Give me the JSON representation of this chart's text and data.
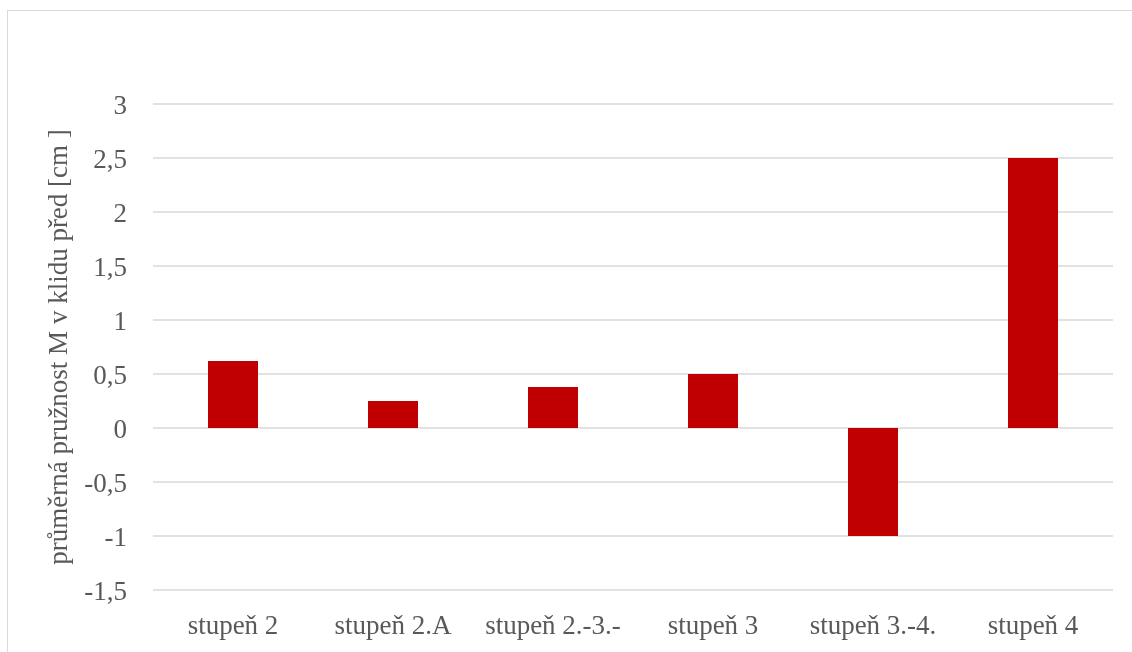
{
  "chart_data": {
    "type": "bar",
    "ylabel": "průměrná pružnost M v klidu před [cm ]",
    "categories": [
      "stupeň 2",
      "stupeň 2.A",
      "stupeň 2.-3.-",
      "stupeň 3",
      "stupeň 3.-4.",
      "stupeň 4"
    ],
    "values": [
      0.62,
      0.25,
      0.38,
      0.5,
      -1,
      2.5
    ],
    "color": "#c00000",
    "ylim": [
      -1.5,
      3
    ],
    "yticks": [
      {
        "value": -1.5,
        "label": "-1,5"
      },
      -1,
      {
        "value": -0.5,
        "label": "-0,5"
      },
      0,
      {
        "value": 0.5,
        "label": "0,5"
      },
      1,
      {
        "value": 1.5,
        "label": "1,5"
      },
      2,
      {
        "value": 2.5,
        "label": "2,5"
      },
      3
    ],
    "grid": "y"
  }
}
